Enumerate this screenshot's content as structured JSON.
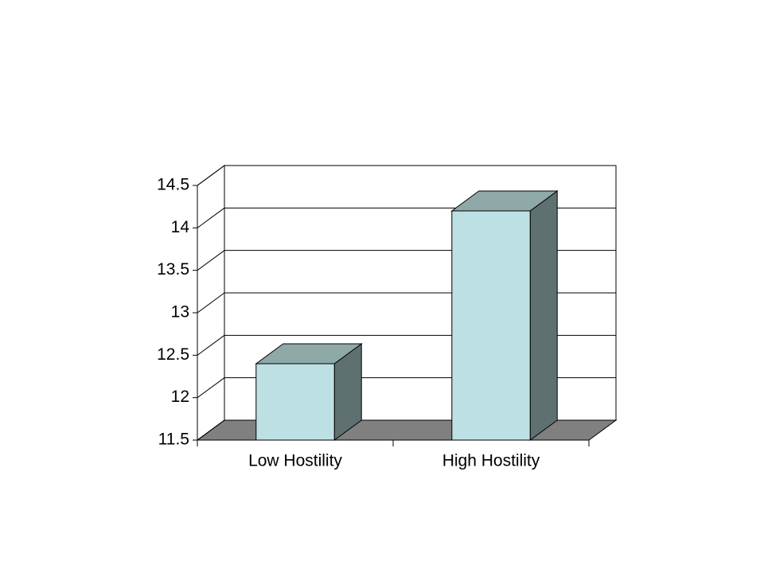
{
  "chart_data": {
    "type": "bar",
    "categories": [
      "Low Hostility",
      "High Hostility"
    ],
    "values": [
      12.4,
      14.2
    ],
    "color": "#bde0e4",
    "ylim": [
      11.5,
      14.5
    ],
    "yticks": [
      11.5,
      12,
      12.5,
      13,
      13.5,
      14,
      14.5
    ],
    "grid": true
  }
}
